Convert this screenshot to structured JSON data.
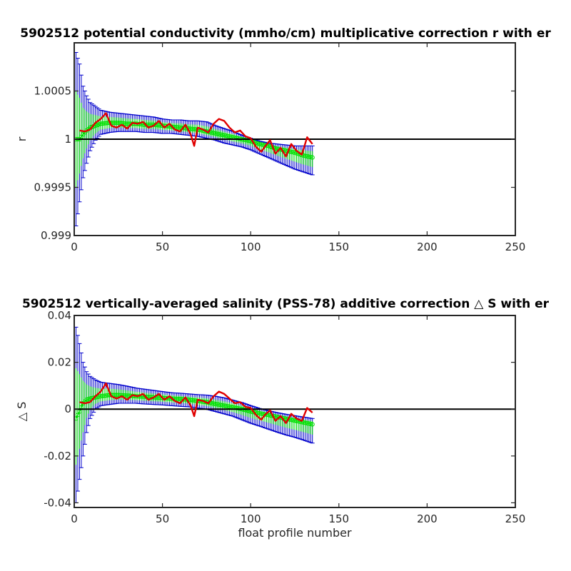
{
  "chart_data": [
    {
      "type": "line",
      "title": "5902512 potential conductivity (mmho/cm) multiplicative correction r with er",
      "xlabel": "",
      "ylabel": "r",
      "xlim": [
        0,
        250
      ],
      "ylim": [
        0.999,
        1.001
      ],
      "x_ticks": [
        0,
        50,
        100,
        150,
        200,
        250
      ],
      "x_tick_labels": [
        "0",
        "50",
        "100",
        "150",
        "200",
        "250"
      ],
      "y_ticks": [
        0.999,
        0.9995,
        1,
        1.0005
      ],
      "y_tick_labels": [
        "0.999",
        "0.9995",
        "1",
        "1.0005"
      ],
      "reference_line": 1,
      "colors": {
        "raw": "#e00000",
        "fit": "#00e000",
        "error": "#0000cc",
        "reference": "#000000"
      },
      "series": [
        {
          "role": "raw",
          "x": [
            3,
            6,
            9,
            12,
            15,
            18,
            21,
            24,
            27,
            30,
            33,
            36,
            39,
            42,
            45,
            48,
            51,
            54,
            57,
            60,
            63,
            66,
            68,
            70,
            73,
            76,
            79,
            82,
            85,
            88,
            91,
            94,
            97,
            100,
            103,
            106,
            108,
            111,
            114,
            117,
            120,
            123,
            126,
            129,
            132,
            135
          ],
          "y": [
            1.00009,
            1.00008,
            1.0001,
            1.00017,
            1.00021,
            1.00027,
            1.00014,
            1.00012,
            1.00015,
            1.00011,
            1.00017,
            1.00016,
            1.00018,
            1.00012,
            1.00014,
            1.00019,
            1.00012,
            1.00016,
            1.0001,
            1.00008,
            1.00015,
            1.00005,
            0.99993,
            1.00012,
            1.0001,
            1.00007,
            1.00016,
            1.00021,
            1.00019,
            1.00012,
            1.00007,
            1.00009,
            1.00003,
            1.00001,
            0.99992,
            0.99987,
            0.99992,
            0.99999,
            0.99985,
            0.99991,
            0.99982,
            0.99995,
            0.99988,
            0.99984,
            1.00002,
            0.99995
          ]
        },
        {
          "role": "fit",
          "x": [
            1,
            3,
            5,
            7,
            9,
            12,
            15,
            20,
            25,
            30,
            35,
            40,
            45,
            50,
            55,
            60,
            65,
            70,
            75,
            80,
            85,
            90,
            95,
            100,
            105,
            110,
            115,
            120,
            125,
            130,
            135
          ],
          "y": [
            1.0,
            1.0,
            1.00005,
            1.00009,
            1.00012,
            1.00014,
            1.00016,
            1.00017,
            1.00017,
            1.00016,
            1.00016,
            1.00015,
            1.00015,
            1.00014,
            1.00013,
            1.00012,
            1.00011,
            1.0001,
            1.00008,
            1.00006,
            1.00004,
            1.00002,
            1.0,
            0.99998,
            0.99995,
            0.99993,
            0.9999,
            0.99988,
            0.99986,
            0.99983,
            0.99981
          ],
          "err_upper": [
            1.0009,
            1.00078,
            1.00055,
            1.00045,
            1.00038,
            1.00034,
            1.0003,
            1.00028,
            1.00027,
            1.00026,
            1.00025,
            1.00024,
            1.00023,
            1.00021,
            1.0002,
            1.0002,
            1.00019,
            1.00019,
            1.00018,
            1.00014,
            1.00011,
            1.00008,
            1.00004,
            1.00001,
            0.99998,
            0.99996,
            0.99995,
            0.99994,
            0.99993,
            0.99993,
            0.99993
          ],
          "err_lower": [
            0.9991,
            0.99935,
            0.9996,
            0.99975,
            0.99988,
            0.99999,
            1.00005,
            1.00007,
            1.00008,
            1.00008,
            1.00008,
            1.00007,
            1.00007,
            1.00006,
            1.00006,
            1.00005,
            1.00004,
            1.00003,
            1.00001,
            0.99999,
            0.99996,
            0.99994,
            0.99992,
            0.99989,
            0.99985,
            0.99981,
            0.99977,
            0.99973,
            0.99969,
            0.99966,
            0.99963
          ]
        }
      ]
    },
    {
      "type": "line",
      "title": "5902512 vertically-averaged salinity (PSS-78) additive correction △ S with er",
      "xlabel": "float profile number",
      "ylabel": "△ S",
      "xlim": [
        0,
        250
      ],
      "ylim": [
        -0.042,
        0.04
      ],
      "x_ticks": [
        0,
        50,
        100,
        150,
        200,
        250
      ],
      "x_tick_labels": [
        "0",
        "50",
        "100",
        "150",
        "200",
        "250"
      ],
      "y_ticks": [
        -0.04,
        -0.02,
        0,
        0.02,
        0.04
      ],
      "y_tick_labels": [
        "-0.04",
        "-0.02",
        "0",
        "0.02",
        "0.04"
      ],
      "reference_line": 0,
      "colors": {
        "raw": "#e00000",
        "fit": "#00e000",
        "error": "#0000cc",
        "reference": "#000000"
      },
      "series": [
        {
          "role": "raw",
          "x": [
            3,
            6,
            9,
            12,
            15,
            18,
            21,
            24,
            27,
            30,
            33,
            36,
            39,
            42,
            45,
            48,
            51,
            54,
            57,
            60,
            63,
            66,
            68,
            70,
            73,
            76,
            79,
            82,
            85,
            88,
            91,
            94,
            97,
            100,
            103,
            106,
            108,
            111,
            114,
            117,
            120,
            123,
            126,
            129,
            132,
            135
          ],
          "y": [
            0.003,
            0.0025,
            0.003,
            0.0055,
            0.0075,
            0.011,
            0.0055,
            0.0045,
            0.0055,
            0.004,
            0.006,
            0.0055,
            0.0065,
            0.004,
            0.005,
            0.0065,
            0.004,
            0.0055,
            0.0035,
            0.0025,
            0.005,
            0.0015,
            -0.003,
            0.004,
            0.0035,
            0.0025,
            0.0055,
            0.0075,
            0.0065,
            0.0045,
            0.0025,
            0.003,
            0.001,
            0.0005,
            -0.0025,
            -0.0045,
            -0.0025,
            -0.0005,
            -0.005,
            -0.003,
            -0.006,
            -0.002,
            -0.004,
            -0.005,
            0.0005,
            -0.0015
          ]
        },
        {
          "role": "fit",
          "x": [
            1,
            3,
            5,
            7,
            9,
            12,
            15,
            20,
            25,
            30,
            35,
            40,
            45,
            50,
            55,
            60,
            65,
            70,
            75,
            80,
            85,
            90,
            95,
            100,
            105,
            110,
            115,
            120,
            125,
            130,
            135
          ],
          "y": [
            -0.004,
            -0.001,
            0.0025,
            0.004,
            0.0045,
            0.005,
            0.0055,
            0.006,
            0.006,
            0.0058,
            0.0055,
            0.0053,
            0.005,
            0.0048,
            0.0045,
            0.0043,
            0.004,
            0.0035,
            0.003,
            0.0022,
            0.0015,
            0.0008,
            0.0,
            -0.001,
            -0.0018,
            -0.0025,
            -0.0033,
            -0.0041,
            -0.0049,
            -0.0057,
            -0.0065
          ],
          "err_upper": [
            0.035,
            0.028,
            0.02,
            0.016,
            0.014,
            0.0125,
            0.0115,
            0.011,
            0.0105,
            0.0098,
            0.009,
            0.0085,
            0.008,
            0.0075,
            0.007,
            0.0068,
            0.0065,
            0.0062,
            0.006,
            0.0055,
            0.0048,
            0.0038,
            0.0028,
            0.0015,
            0.0003,
            -0.0007,
            -0.0015,
            -0.0022,
            -0.0028,
            -0.0034,
            -0.004
          ],
          "err_lower": [
            -0.04,
            -0.03,
            -0.02,
            -0.01,
            -0.004,
            0.0,
            0.0015,
            0.002,
            0.0025,
            0.0025,
            0.0025,
            0.0022,
            0.002,
            0.0018,
            0.0015,
            0.0012,
            0.001,
            0.0005,
            0.0,
            -0.001,
            -0.002,
            -0.003,
            -0.0045,
            -0.006,
            -0.0072,
            -0.0085,
            -0.0098,
            -0.011,
            -0.012,
            -0.0132,
            -0.0145
          ]
        }
      ]
    }
  ]
}
